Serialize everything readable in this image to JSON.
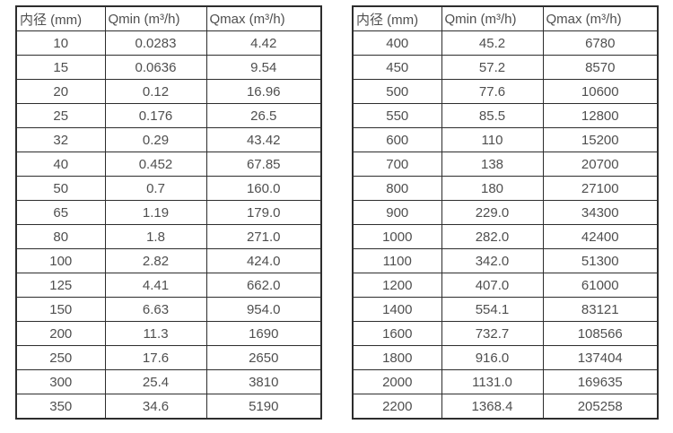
{
  "page": {
    "background_color": "#ffffff",
    "text_color": "#4f4f4f",
    "border_color": "#2d2d2d"
  },
  "tables": [
    {
      "headers": [
        "内径 (mm)",
        "Qmin (m³/h)",
        "Qmax (m³/h)"
      ],
      "rows": [
        [
          "10",
          "0.0283",
          "4.42"
        ],
        [
          "15",
          "0.0636",
          "9.54"
        ],
        [
          "20",
          "0.12",
          "16.96"
        ],
        [
          "25",
          "0.176",
          "26.5"
        ],
        [
          "32",
          "0.29",
          "43.42"
        ],
        [
          "40",
          "0.452",
          "67.85"
        ],
        [
          "50",
          "0.7",
          "160.0"
        ],
        [
          "65",
          "1.19",
          "179.0"
        ],
        [
          "80",
          "1.8",
          "271.0"
        ],
        [
          "100",
          "2.82",
          "424.0"
        ],
        [
          "125",
          "4.41",
          "662.0"
        ],
        [
          "150",
          "6.63",
          "954.0"
        ],
        [
          "200",
          "11.3",
          "1690"
        ],
        [
          "250",
          "17.6",
          "2650"
        ],
        [
          "300",
          "25.4",
          "3810"
        ],
        [
          "350",
          "34.6",
          "5190"
        ]
      ]
    },
    {
      "headers": [
        "内径 (mm)",
        "Qmin (m³/h)",
        "Qmax (m³/h)"
      ],
      "rows": [
        [
          "400",
          "45.2",
          "6780"
        ],
        [
          "450",
          "57.2",
          "8570"
        ],
        [
          "500",
          "77.6",
          "10600"
        ],
        [
          "550",
          "85.5",
          "12800"
        ],
        [
          "600",
          "110",
          "15200"
        ],
        [
          "700",
          "138",
          "20700"
        ],
        [
          "800",
          "180",
          "27100"
        ],
        [
          "900",
          "229.0",
          "34300"
        ],
        [
          "1000",
          "282.0",
          "42400"
        ],
        [
          "1100",
          "342.0",
          "51300"
        ],
        [
          "1200",
          "407.0",
          "61000"
        ],
        [
          "1400",
          "554.1",
          "83121"
        ],
        [
          "1600",
          "732.7",
          "108566"
        ],
        [
          "1800",
          "916.0",
          "137404"
        ],
        [
          "2000",
          "1131.0",
          "169635"
        ],
        [
          "2200",
          "1368.4",
          "205258"
        ]
      ]
    }
  ]
}
